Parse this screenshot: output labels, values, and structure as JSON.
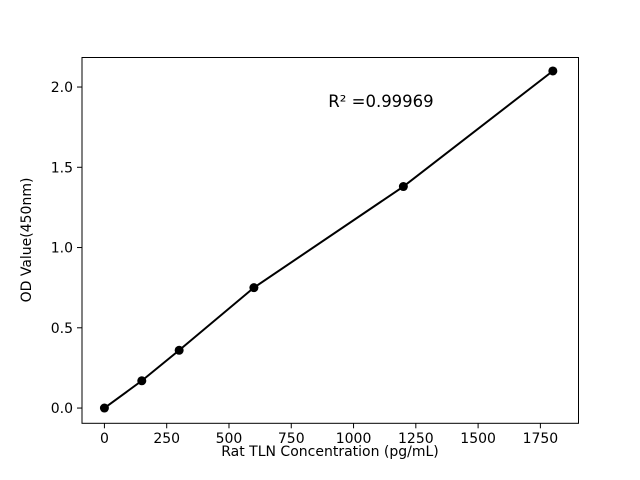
{
  "figure": {
    "background": "#ffffff"
  },
  "chart_data": {
    "type": "scatter",
    "title": "",
    "xlabel": "Rat TLN Concentration (pg/mL)",
    "ylabel": "OD Value(450nm)",
    "annotation": {
      "text": "R² =0.99969",
      "x": 1112,
      "y": 1.91
    },
    "x": [
      0,
      150,
      300,
      600,
      1200,
      1800
    ],
    "y": [
      0.0,
      0.17,
      0.36,
      0.75,
      1.38,
      2.1
    ],
    "xticks": [
      0,
      250,
      500,
      750,
      1000,
      1250,
      1500,
      1750
    ],
    "yticks": [
      0.0,
      0.5,
      1.0,
      1.5,
      2.0
    ],
    "xlim": [
      -90,
      1903
    ],
    "ylim": [
      -0.095,
      2.184
    ],
    "grid": false,
    "legend": false,
    "line_color": "#000000",
    "marker_color": "#000000",
    "axis_color": "#000000",
    "text_color": "#000000"
  }
}
